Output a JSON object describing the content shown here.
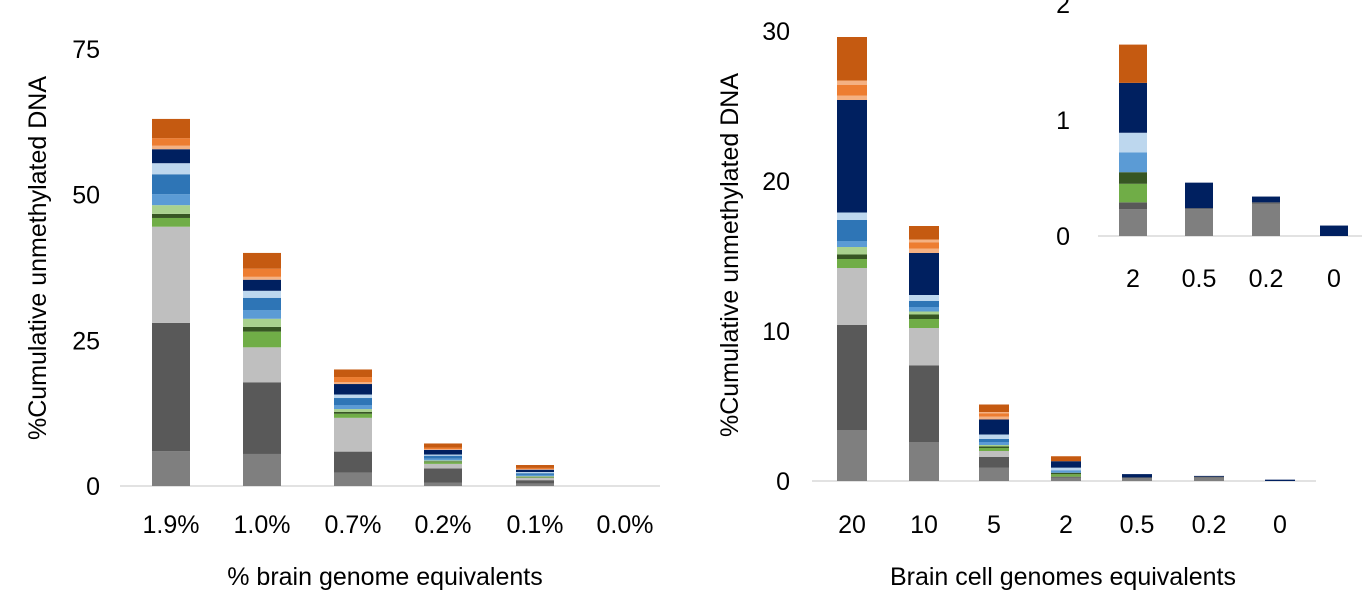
{
  "segment_colors": [
    "#7f7f7f",
    "#595959",
    "#bfbfbf",
    "#70ad47",
    "#375623",
    "#a9d18e",
    "#5b9bd5",
    "#2e75b6",
    "#bdd7ee",
    "#002060",
    "#f4b183",
    "#ed7d31",
    "#c55a11"
  ],
  "chart_data": [
    {
      "type": "bar",
      "stacked": true,
      "title": "",
      "xlabel": "% brain genome equivalents",
      "ylabel": "%Cumulative unmethylated DNA",
      "ylim": [
        0,
        75
      ],
      "yticks": [
        "0",
        "25",
        "50",
        "75"
      ],
      "categories": [
        "1.9%",
        "1.0%",
        "0.7%",
        "0.2%",
        "0.1%",
        "0.0%"
      ],
      "segments": [
        [
          6.0,
          22.0,
          16.5,
          1.5,
          0.7,
          1.5,
          1.9,
          3.4,
          1.9,
          2.4,
          0.6,
          1.3,
          3.3
        ],
        [
          5.5,
          12.3,
          6.0,
          2.7,
          0.8,
          1.4,
          1.5,
          2.1,
          1.2,
          1.9,
          0.5,
          1.4,
          2.7
        ],
        [
          2.3,
          3.6,
          5.8,
          0.7,
          0.3,
          0.5,
          0.7,
          1.2,
          0.6,
          1.8,
          0.3,
          0.9,
          1.3
        ],
        [
          0.6,
          2.4,
          0.8,
          0.3,
          0.1,
          0.2,
          0.3,
          0.5,
          0.2,
          0.8,
          0.1,
          0.3,
          0.7
        ],
        [
          0.4,
          0.6,
          0.4,
          0.1,
          0.1,
          0.1,
          0.2,
          0.3,
          0.2,
          0.4,
          0.1,
          0.2,
          0.5
        ],
        [
          0,
          0,
          0,
          0,
          0,
          0,
          0,
          0,
          0,
          0,
          0,
          0,
          0
        ]
      ],
      "grid": false
    },
    {
      "type": "bar",
      "stacked": true,
      "title": "",
      "xlabel": "Brain cell genomes equivalents",
      "ylabel": "%Cumulative unmethylated DNA",
      "ylim": [
        0,
        30
      ],
      "yticks": [
        "0",
        "10",
        "20",
        "30"
      ],
      "categories": [
        "20",
        "10",
        "5",
        "2",
        "0.5",
        "0.2",
        "0"
      ],
      "segments": [
        [
          3.4,
          7.0,
          3.8,
          0.6,
          0.3,
          0.5,
          0.4,
          1.4,
          0.5,
          1.3,
          6.2,
          0.3,
          0.7,
          0.3,
          2.9
        ],
        [
          2.6,
          5.1,
          2.5,
          0.6,
          0.3,
          0.2,
          0.3,
          0.4,
          0.4,
          0.2,
          2.6,
          0.3,
          0.4,
          0.2,
          0.9
        ],
        [
          0.9,
          0.7,
          0.4,
          0.2,
          0.1,
          0.1,
          0.2,
          0.2,
          0.3,
          0.1,
          0.9,
          0.2,
          0.2,
          0.1,
          0.5
        ],
        [
          0.23,
          0.06,
          0,
          0.16,
          0.1,
          0,
          0.17,
          0,
          0.17,
          0,
          0.43,
          0,
          0,
          0,
          0.33
        ],
        [
          0.23,
          0.01,
          0,
          0,
          0,
          0,
          0,
          0,
          0,
          0,
          0.22,
          0,
          0,
          0,
          0
        ],
        [
          0.28,
          0.01,
          0,
          0,
          0,
          0,
          0,
          0,
          0,
          0,
          0.05,
          0,
          0,
          0,
          0
        ],
        [
          0,
          0,
          0,
          0,
          0,
          0,
          0,
          0,
          0,
          0,
          0.09,
          0,
          0,
          0,
          0
        ]
      ],
      "segment_color_index": [
        0,
        1,
        2,
        3,
        4,
        5,
        6,
        7,
        8,
        9,
        9,
        10,
        11,
        10,
        12
      ],
      "grid": false,
      "inset": {
        "ylim": [
          0,
          2
        ],
        "yticks": [
          "0",
          "1",
          "2"
        ],
        "categories": [
          "2",
          "0.5",
          "0.2",
          "0"
        ],
        "source_categories": [
          3,
          4,
          5,
          6
        ]
      }
    }
  ]
}
